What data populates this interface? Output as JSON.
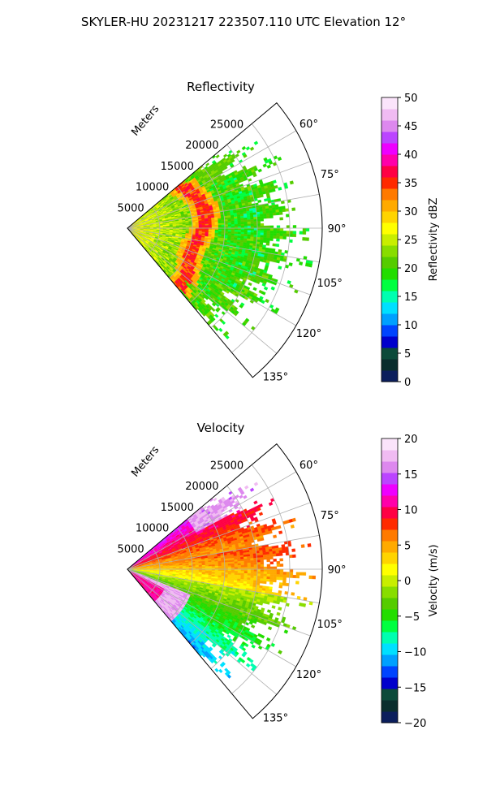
{
  "figure": {
    "suptitle": "SKYLER-HU  20231217  223507.110 UTC Elevation 12°"
  },
  "chart_data": [
    {
      "type": "heatmap",
      "title": "Reflectivity",
      "range_label": "Meters",
      "range_ticks": [
        "5000",
        "10000",
        "15000",
        "20000",
        "25000"
      ],
      "azimuth_ticks": [
        "60°",
        "75°",
        "90°",
        "105°",
        "120°",
        "135°"
      ],
      "azimuth_span_deg": [
        50,
        140
      ],
      "range_max_m": 30000,
      "grid": true,
      "colorbar": {
        "label": "Reflectivity dBZ",
        "min": 0,
        "max": 50,
        "ticks": [
          "0",
          "5",
          "10",
          "15",
          "20",
          "25",
          "30",
          "35",
          "40",
          "45",
          "50"
        ],
        "colors": [
          "#0b1e5c",
          "#0a2d2d",
          "#0c4a3a",
          "#0000cc",
          "#0044ff",
          "#00a0ff",
          "#00e0ff",
          "#00ffb0",
          "#00ff40",
          "#22dd00",
          "#55cc00",
          "#88dd00",
          "#c8ee00",
          "#ffff00",
          "#ffd400",
          "#ffaa00",
          "#ff7a00",
          "#ff2a00",
          "#ff0044",
          "#ff00aa",
          "#ee00ff",
          "#bb44ff",
          "#dd88ee",
          "#f0bbf2",
          "#fbe4fb"
        ]
      }
    },
    {
      "type": "heatmap",
      "title": "Velocity",
      "range_label": "Meters",
      "range_ticks": [
        "5000",
        "10000",
        "15000",
        "20000",
        "25000"
      ],
      "azimuth_ticks": [
        "60°",
        "75°",
        "90°",
        "105°",
        "120°",
        "135°"
      ],
      "azimuth_span_deg": [
        50,
        140
      ],
      "range_max_m": 30000,
      "grid": true,
      "colorbar": {
        "label": "Velocity (m/s)",
        "min": -20,
        "max": 20,
        "ticks": [
          "−20",
          "−15",
          "−10",
          "−5",
          "0",
          "5",
          "10",
          "15",
          "20"
        ],
        "colors": [
          "#0b1e5c",
          "#0a2d2d",
          "#0c4a3a",
          "#0000cc",
          "#0044ff",
          "#00a0ff",
          "#00e0ff",
          "#00ffb0",
          "#00ff40",
          "#22dd00",
          "#55cc00",
          "#88dd00",
          "#c8ee00",
          "#ffff00",
          "#ffd400",
          "#ffaa00",
          "#ff7a00",
          "#ff2a00",
          "#ff0044",
          "#ff00aa",
          "#ee00ff",
          "#bb44ff",
          "#dd88ee",
          "#f0bbf2",
          "#fbe4fb"
        ]
      }
    }
  ]
}
